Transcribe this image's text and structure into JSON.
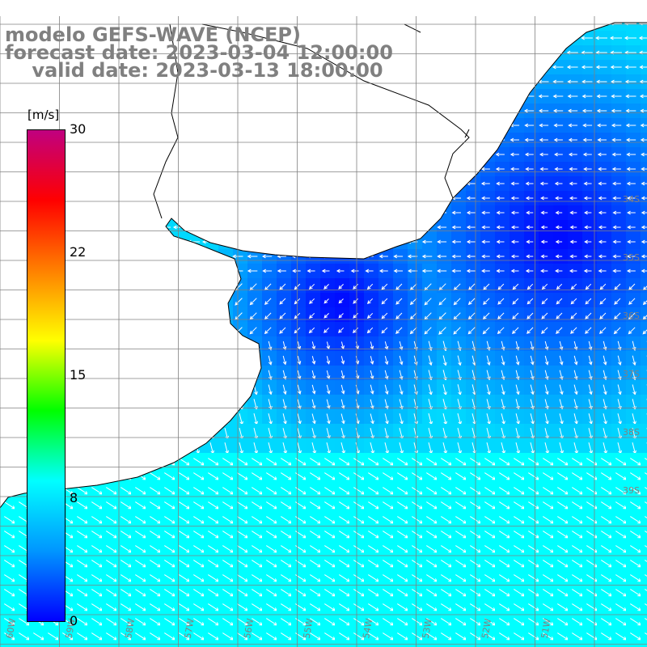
{
  "title": {
    "line1": "modelo GEFS-WAVE (NCEP)",
    "line2": "forecast date: 2023-03-04 12:00:00",
    "line3": "    valid date: 2023-03-13 18:00:00"
  },
  "colorbar": {
    "unit": "[m/s]",
    "ticks": [
      "30",
      "22",
      "15",
      "8",
      "0"
    ],
    "tick_values": [
      30,
      22,
      15,
      8,
      0
    ],
    "range": [
      0,
      30
    ],
    "colors": [
      "#0000ff",
      "#0096ff",
      "#00ffff",
      "#00ff00",
      "#ffff00",
      "#ff8000",
      "#ff0000",
      "#c00080"
    ]
  },
  "map": {
    "variable": "wind speed and direction",
    "land_color": "#ffffff",
    "coast_color": "#000000",
    "grid_color": "#808080",
    "ocean_color_low": "#0000ff",
    "ocean_color_high": "#00ffff",
    "arrow_color": "#ffffff",
    "lat_labels": [
      "34S",
      "35S",
      "36S",
      "37S",
      "38S",
      "39S"
    ],
    "lon_labels": [
      "60W",
      "59W",
      "58W",
      "57W",
      "56W",
      "55W",
      "54W",
      "53W",
      "52W",
      "51W"
    ]
  }
}
